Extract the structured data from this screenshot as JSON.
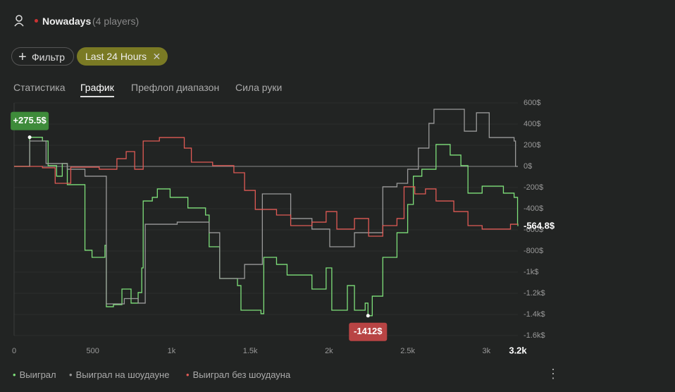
{
  "header": {
    "game": "Nowadays",
    "players": "(4 players)"
  },
  "filters": {
    "add": "Фильтр",
    "active": "Last 24 Hours"
  },
  "tabs": [
    "Статистика",
    "График",
    "Префлоп диапазон",
    "Сила руки"
  ],
  "active_tab": 1,
  "chart_data": {
    "type": "line",
    "xlim": [
      0,
      3200
    ],
    "ylim": [
      -1600,
      600
    ],
    "xticks": [
      0,
      500,
      {
        "value": 1000,
        "label": "1k"
      },
      {
        "value": 1500,
        "label": "1.5k"
      },
      {
        "value": 2000,
        "label": "2k"
      },
      {
        "value": 2500,
        "label": "2.5k"
      },
      {
        "value": 3000,
        "label": "3k"
      },
      {
        "value": 3200,
        "label": "3.2k"
      }
    ],
    "yticks": [
      {
        "value": 600,
        "label": "600$"
      },
      {
        "value": 400,
        "label": "400$"
      },
      {
        "value": 200,
        "label": "200$"
      },
      {
        "value": 0,
        "label": "0$"
      },
      {
        "value": -200,
        "label": "-200$"
      },
      {
        "value": -400,
        "label": "-400$"
      },
      {
        "value": -600,
        "label": "-600$"
      },
      {
        "value": -800,
        "label": "-800$"
      },
      {
        "value": -1000,
        "label": "-1k$"
      },
      {
        "value": -1200,
        "label": "-1.2k$"
      },
      {
        "value": -1400,
        "label": "-1.4k$"
      },
      {
        "value": -1600,
        "label": "-1.6k$"
      }
    ],
    "series": [
      {
        "name": "Выиграл",
        "color": "#7ee07a",
        "x": [
          0,
          81,
          99,
          180,
          216,
          270,
          306,
          338,
          441,
          450,
          495,
          577,
          586,
          631,
          685,
          743,
          788,
          811,
          820,
          878,
          910,
          991,
          1104,
          1216,
          1239,
          1306,
          1419,
          1441,
          1568,
          1586,
          1667,
          1734,
          1869,
          1892,
          1982,
          2018,
          2117,
          2162,
          2230,
          2248,
          2275,
          2342,
          2432,
          2500,
          2536,
          2590,
          2680,
          2770,
          2838,
          2883,
          2973,
          3108,
          3176,
          3198,
          3200
        ],
        "values": [
          0,
          0,
          275.5,
          240,
          7,
          -93,
          27,
          -173,
          -173,
          -793,
          -860,
          -747,
          -1327,
          -1307,
          -1160,
          -1293,
          -1193,
          -960,
          -327,
          -293,
          -213,
          -293,
          -393,
          -460,
          -760,
          -1060,
          -1127,
          -1360,
          -1393,
          -860,
          -927,
          -1027,
          -1027,
          -1160,
          -960,
          -1360,
          -1127,
          -1360,
          -1293,
          -1412,
          -1227,
          -860,
          -627,
          -360,
          -93,
          -27,
          207,
          107,
          7,
          -253,
          -187,
          -253,
          -293,
          -547,
          -564.8
        ]
      },
      {
        "name": "Выиграл на шоудауне",
        "color": "#9a9a9a",
        "x": [
          0,
          99,
          203,
          338,
          450,
          586,
          700,
          788,
          833,
          1036,
          1239,
          1306,
          1464,
          1568,
          1577,
          1757,
          1892,
          2005,
          2162,
          2342,
          2432,
          2500,
          2568,
          2635,
          2667,
          2838,
          2860,
          2937,
          3018,
          3176,
          3185,
          3200
        ],
        "values": [
          0,
          240,
          27,
          -27,
          -93,
          -1300,
          -1250,
          -1293,
          -547,
          -527,
          -627,
          -1060,
          -927,
          -927,
          -260,
          -493,
          -593,
          -760,
          -627,
          -193,
          -160,
          -27,
          173,
          407,
          540,
          540,
          333,
          507,
          273,
          240,
          0,
          0
        ]
      },
      {
        "name": "Выиграл без шоудауна",
        "color": "#e05a55",
        "x": [
          0,
          180,
          261,
          360,
          541,
          653,
          712,
          766,
          820,
          923,
          1081,
          1126,
          1261,
          1396,
          1464,
          1532,
          1667,
          1757,
          1892,
          1982,
          2050,
          2162,
          2252,
          2342,
          2432,
          2477,
          2545,
          2613,
          2680,
          2793,
          2883,
          2973,
          3153,
          3200
        ],
        "values": [
          0,
          -13,
          -160,
          -7,
          -27,
          73,
          140,
          -27,
          240,
          273,
          173,
          40,
          7,
          -60,
          -227,
          -407,
          -460,
          -560,
          -527,
          -427,
          -593,
          -493,
          -660,
          -560,
          -493,
          -193,
          -260,
          -213,
          -327,
          -427,
          -560,
          -593,
          -547,
          -547
        ]
      }
    ],
    "annotations": [
      {
        "x": 99,
        "value": 275.5,
        "label": "+275.5$",
        "color": "#3e8b3a"
      },
      {
        "x": 2248,
        "value": -1412,
        "label": "-1412$",
        "color": "#b84444"
      },
      {
        "x": 3200,
        "value": -564.8,
        "label": "-564.8$",
        "color": null
      }
    ]
  }
}
